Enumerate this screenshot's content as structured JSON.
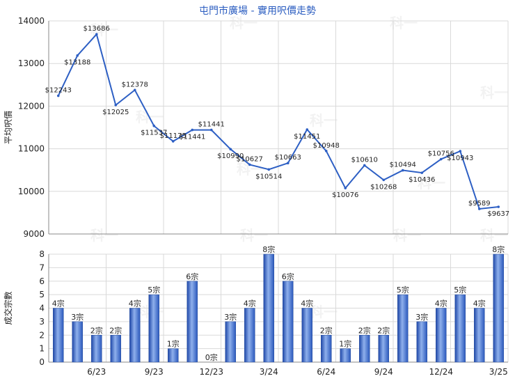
{
  "title": "屯門市廣場 - 實用呎價走勢",
  "chart_data": [
    {
      "type": "line",
      "title": "屯門市廣場 - 實用呎價走勢",
      "ylabel": "平均呎價",
      "ylim": [
        9000,
        14000
      ],
      "yticks": [
        9000,
        10000,
        11000,
        12000,
        13000,
        14000
      ],
      "grid": true,
      "color": "#2d5fc4",
      "values": [
        12243,
        13188,
        13686,
        12025,
        12378,
        11537,
        11175,
        11441,
        11441,
        10990,
        10627,
        10514,
        10663,
        11451,
        10948,
        10076,
        10610,
        10268,
        10494,
        10436,
        10756,
        10943,
        9589,
        9637
      ],
      "labels": [
        "$12243",
        "$13188",
        "$13686",
        "$12025",
        "$12378",
        "$11537",
        "$11175",
        "$11441",
        "$11441",
        "$10990",
        "$10627",
        "$10514",
        "$10663",
        "$11451",
        "$10948",
        "$10076",
        "$10610",
        "$10268",
        "$10494",
        "$10436",
        "$10756",
        "$10943",
        "$9589",
        "$9637"
      ]
    },
    {
      "type": "bar",
      "ylabel": "成交宗數",
      "ylim": [
        0,
        8
      ],
      "yticks": [
        0,
        1,
        2,
        3,
        4,
        5,
        6,
        7,
        8
      ],
      "grid": true,
      "color": "#3f6fd0",
      "values": [
        4,
        3,
        2,
        2,
        4,
        5,
        1,
        6,
        0,
        3,
        4,
        8,
        6,
        4,
        2,
        1,
        2,
        2,
        5,
        3,
        4,
        5,
        4,
        8
      ],
      "labels": [
        "4宗",
        "3宗",
        "2宗",
        "2宗",
        "4宗",
        "5宗",
        "1宗",
        "6宗",
        "0宗",
        "3宗",
        "4宗",
        "8宗",
        "6宗",
        "4宗",
        "2宗",
        "1宗",
        "2宗",
        "2宗",
        "5宗",
        "3宗",
        "4宗",
        "5宗",
        "4宗",
        "8宗"
      ],
      "xticks": [
        "6/23",
        "9/23",
        "12/23",
        "3/24",
        "6/24",
        "9/24",
        "12/24",
        "3/25"
      ]
    }
  ],
  "watermark": "科一"
}
